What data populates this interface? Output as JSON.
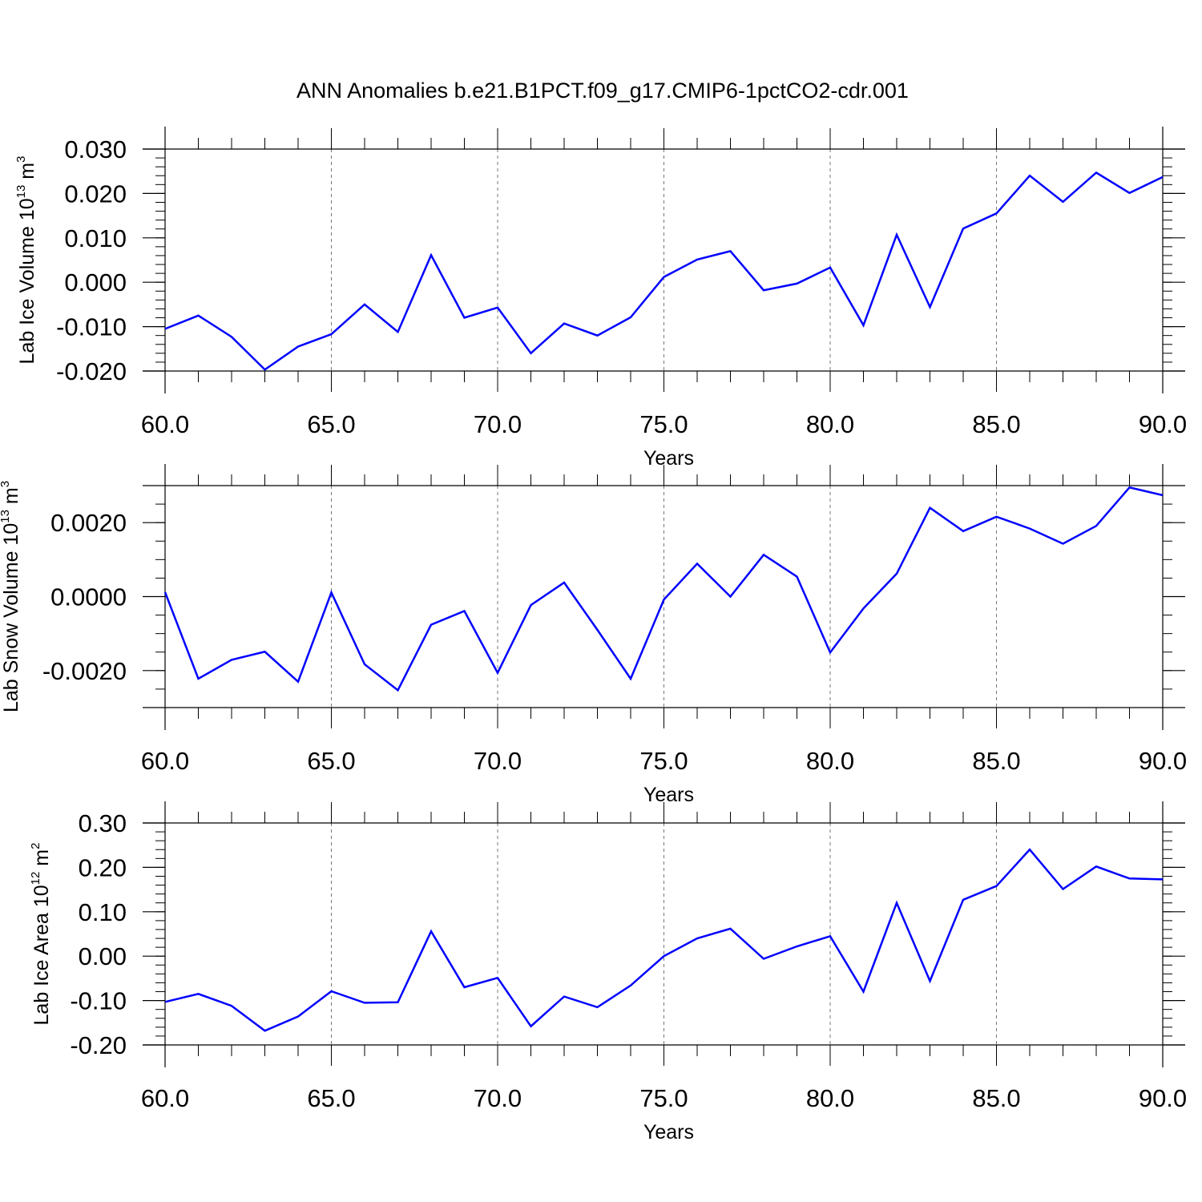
{
  "title": "ANN Anomalies b.e21.B1PCT.f09_g17.CMIP6-1pctCO2-cdr.001",
  "chart_data": [
    {
      "type": "line",
      "ylabel": "Lab Ice Volume 10",
      "ylabel_exp": "13",
      "ylabel_unit": "m",
      "ylabel_unit_exp": "3",
      "xlabel": "Years",
      "xlim": [
        60,
        90
      ],
      "ylim": [
        -0.02,
        0.03
      ],
      "x_ticks": [
        "60.0",
        "65.0",
        "70.0",
        "75.0",
        "80.0",
        "85.0",
        "90.0"
      ],
      "y_ticks": [
        "-0.020",
        "-0.010",
        "0.000",
        "0.010",
        "0.020",
        "0.030"
      ],
      "y_tick_values": [
        -0.02,
        -0.01,
        0.0,
        0.01,
        0.02,
        0.03
      ],
      "y_minor_step": 0.002,
      "grid": "vertical-dashed",
      "color": "#0000ff",
      "x": [
        60,
        61,
        62,
        63,
        64,
        65,
        66,
        67,
        68,
        69,
        70,
        71,
        72,
        73,
        74,
        75,
        76,
        77,
        78,
        79,
        80,
        81,
        82,
        83,
        84,
        85,
        86,
        87,
        88,
        89,
        90
      ],
      "values": [
        -0.0105,
        -0.0075,
        -0.0123,
        -0.0197,
        -0.0145,
        -0.0117,
        -0.005,
        -0.0112,
        0.0061,
        -0.008,
        -0.0057,
        -0.016,
        -0.0093,
        -0.012,
        -0.0079,
        0.0012,
        0.0051,
        0.007,
        -0.0018,
        -0.0003,
        0.0033,
        -0.0097,
        0.0107,
        -0.0056,
        0.0121,
        0.0155,
        0.024,
        0.0181,
        0.0247,
        0.0201,
        0.0237
      ]
    },
    {
      "type": "line",
      "ylabel": "Lab Snow Volume 10",
      "ylabel_exp": "13",
      "ylabel_unit": "m",
      "ylabel_unit_exp": "3",
      "xlabel": "Years",
      "xlim": [
        60,
        90
      ],
      "ylim": [
        -0.003,
        0.003
      ],
      "x_ticks": [
        "60.0",
        "65.0",
        "70.0",
        "75.0",
        "80.0",
        "85.0",
        "90.0"
      ],
      "y_ticks": [
        "-0.0020",
        "0.0000",
        "0.0020"
      ],
      "y_tick_values": [
        -0.002,
        0.0,
        0.002
      ],
      "y_minor_step": 0.0005,
      "grid": "vertical-dashed",
      "color": "#0000ff",
      "x": [
        60,
        61,
        62,
        63,
        64,
        65,
        66,
        67,
        68,
        69,
        70,
        71,
        72,
        73,
        74,
        75,
        76,
        77,
        78,
        79,
        80,
        81,
        82,
        83,
        84,
        85,
        86,
        87,
        88,
        89,
        90
      ],
      "values": [
        0.00012,
        -0.00222,
        -0.00171,
        -0.00149,
        -0.0023,
        0.00011,
        -0.00183,
        -0.00253,
        -0.00076,
        -0.00039,
        -0.00206,
        -0.00023,
        0.00038,
        -0.0009,
        -0.00222,
        -8e-05,
        0.00089,
        0.0,
        0.00113,
        0.00054,
        -0.00151,
        -0.00032,
        0.00062,
        0.0024,
        0.00177,
        0.00216,
        0.00184,
        0.00143,
        0.00191,
        0.00295,
        0.00274
      ]
    },
    {
      "type": "line",
      "ylabel": "Lab Ice Area 10",
      "ylabel_exp": "12",
      "ylabel_unit": "m",
      "ylabel_unit_exp": "2",
      "xlabel": "Years",
      "xlim": [
        60,
        90
      ],
      "ylim": [
        -0.2,
        0.3
      ],
      "x_ticks": [
        "60.0",
        "65.0",
        "70.0",
        "75.0",
        "80.0",
        "85.0",
        "90.0"
      ],
      "y_ticks": [
        "-0.20",
        "-0.10",
        "0.00",
        "0.10",
        "0.20",
        "0.30"
      ],
      "y_tick_values": [
        -0.2,
        -0.1,
        0.0,
        0.1,
        0.2,
        0.3
      ],
      "y_minor_step": 0.02,
      "grid": "vertical-dashed",
      "color": "#0000ff",
      "x": [
        60,
        61,
        62,
        63,
        64,
        65,
        66,
        67,
        68,
        69,
        70,
        71,
        72,
        73,
        74,
        75,
        76,
        77,
        78,
        79,
        80,
        81,
        82,
        83,
        84,
        85,
        86,
        87,
        88,
        89,
        90
      ],
      "values": [
        -0.103,
        -0.085,
        -0.112,
        -0.168,
        -0.136,
        -0.079,
        -0.105,
        -0.104,
        0.056,
        -0.07,
        -0.049,
        -0.158,
        -0.091,
        -0.115,
        -0.066,
        0.0,
        0.04,
        0.062,
        -0.006,
        0.022,
        0.045,
        -0.08,
        0.12,
        -0.056,
        0.127,
        0.158,
        0.24,
        0.151,
        0.202,
        0.175,
        0.173
      ]
    }
  ]
}
